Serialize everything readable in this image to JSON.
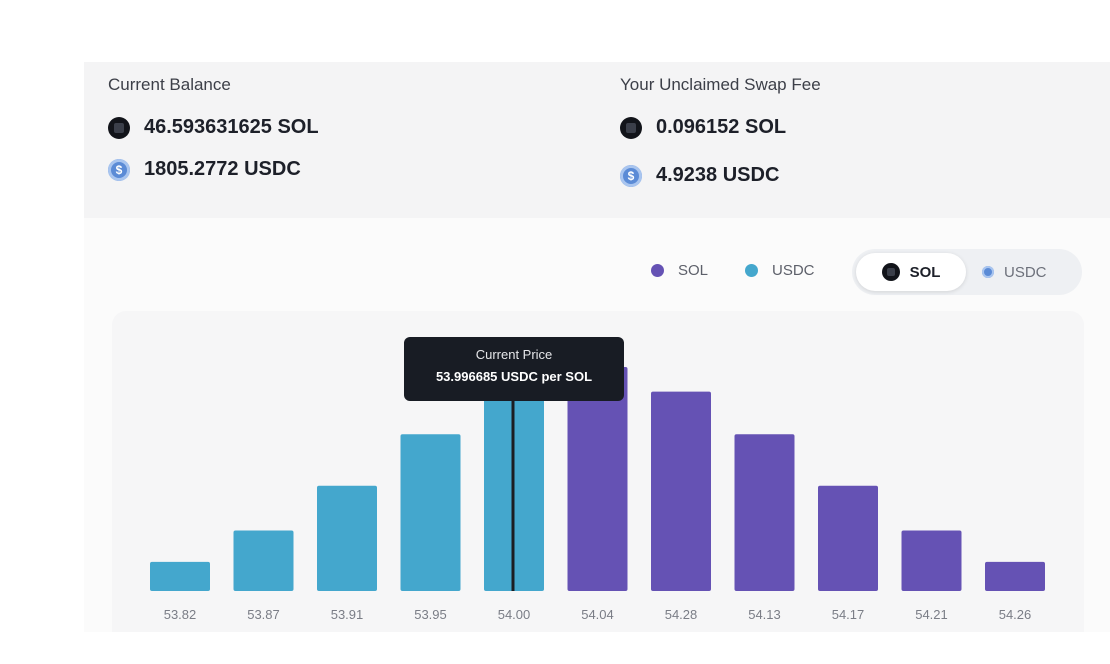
{
  "balance": {
    "title": "Current Balance",
    "sol": "46.593631625 SOL",
    "usdc": "1805.2772 USDC"
  },
  "fees": {
    "title": "Your Unclaimed Swap Fee",
    "sol": "0.096152 SOL",
    "usdc": "4.9238 USDC"
  },
  "legend": {
    "sol_label": "SOL",
    "usdc_label": "USDC",
    "sol_color": "#6552b4",
    "usdc_color": "#44a7cd"
  },
  "toggle": {
    "active_label": "SOL",
    "inactive_label": "USDC"
  },
  "tooltip": {
    "title": "Current Price",
    "value": "53.996685 USDC per SOL"
  },
  "chart_data": {
    "type": "bar",
    "categories": [
      "53.82",
      "53.87",
      "53.91",
      "53.95",
      "54.00",
      "54.04",
      "54.28",
      "54.13",
      "54.17",
      "54.21",
      "54.26"
    ],
    "series": [
      {
        "name": "USDC",
        "color": "#44a7cd",
        "values": [
          13,
          27,
          47,
          70,
          100,
          null,
          null,
          null,
          null,
          null,
          null
        ]
      },
      {
        "name": "SOL",
        "color": "#6552b4",
        "values": [
          null,
          null,
          null,
          null,
          null,
          100,
          89,
          70,
          47,
          27,
          13
        ]
      }
    ],
    "current_price": 53.996685,
    "current_price_category_index": 4,
    "ylim": [
      0,
      100
    ],
    "legend_position": "top-right",
    "grid": false
  }
}
